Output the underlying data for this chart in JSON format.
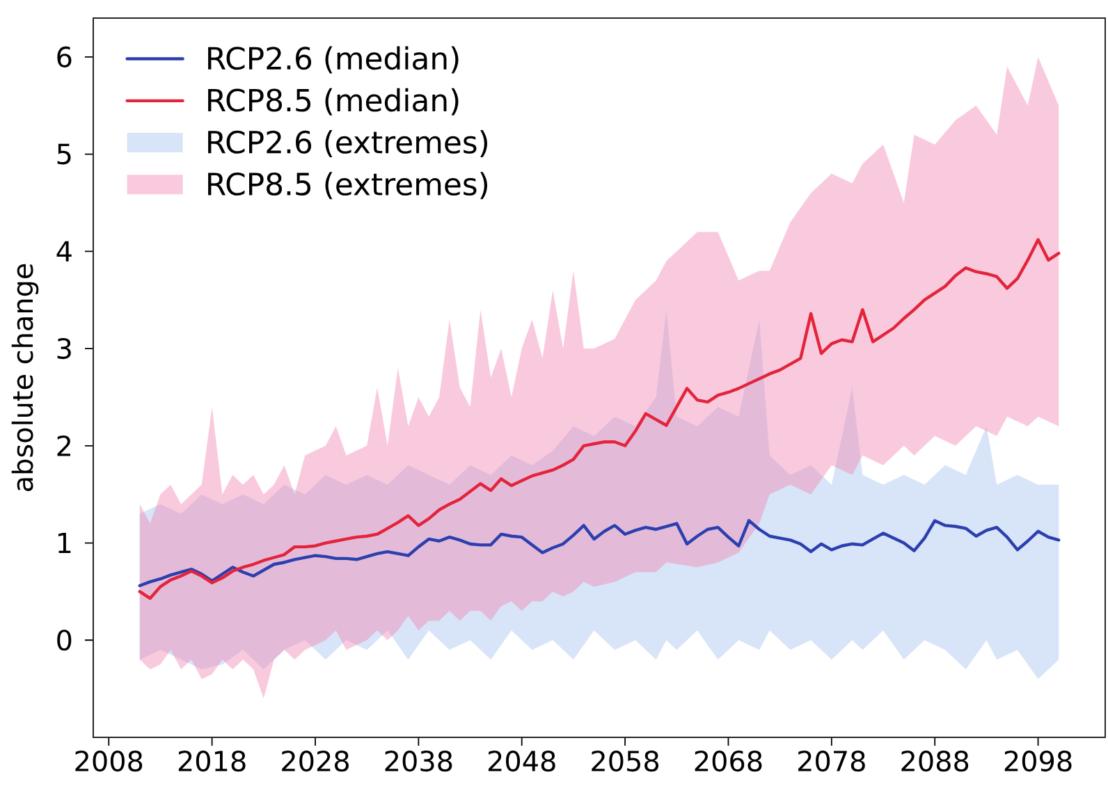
{
  "chart_data": {
    "type": "line",
    "ylabel": "absolute change",
    "x": [
      2011,
      2012,
      2013,
      2014,
      2015,
      2016,
      2017,
      2018,
      2019,
      2020,
      2021,
      2022,
      2023,
      2024,
      2025,
      2026,
      2027,
      2028,
      2029,
      2030,
      2031,
      2032,
      2033,
      2034,
      2035,
      2036,
      2037,
      2038,
      2039,
      2040,
      2041,
      2042,
      2043,
      2044,
      2045,
      2046,
      2047,
      2048,
      2049,
      2050,
      2051,
      2052,
      2053,
      2054,
      2055,
      2056,
      2057,
      2058,
      2059,
      2060,
      2061,
      2062,
      2063,
      2064,
      2065,
      2066,
      2067,
      2068,
      2069,
      2070,
      2071,
      2072,
      2073,
      2074,
      2075,
      2076,
      2077,
      2078,
      2079,
      2080,
      2081,
      2082,
      2083,
      2084,
      2085,
      2086,
      2087,
      2088,
      2089,
      2090,
      2091,
      2092,
      2093,
      2094,
      2095,
      2096,
      2097,
      2098,
      2099,
      2100
    ],
    "xlim": [
      2006.5,
      2104.5
    ],
    "ylim": [
      -1.0,
      6.4
    ],
    "xticks": [
      2008,
      2018,
      2028,
      2038,
      2048,
      2058,
      2068,
      2078,
      2088,
      2098
    ],
    "yticks": [
      0,
      1,
      2,
      3,
      4,
      5,
      6
    ],
    "legend": "top left",
    "marker": "none",
    "line_style": "solid",
    "series": [
      {
        "name": "RCP2.6 (median)",
        "color": "#2b3fae",
        "values": [
          0.56,
          0.6,
          0.63,
          0.67,
          0.7,
          0.73,
          0.68,
          0.61,
          0.68,
          0.75,
          0.7,
          0.66,
          0.72,
          0.78,
          0.8,
          0.83,
          0.85,
          0.87,
          0.86,
          0.84,
          0.84,
          0.83,
          0.86,
          0.89,
          0.91,
          0.89,
          0.87,
          0.96,
          1.04,
          1.02,
          1.06,
          1.03,
          0.99,
          0.98,
          0.98,
          1.09,
          1.07,
          1.06,
          0.98,
          0.9,
          0.95,
          0.99,
          1.08,
          1.18,
          1.04,
          1.12,
          1.18,
          1.09,
          1.13,
          1.16,
          1.14,
          1.17,
          1.2,
          0.99,
          1.07,
          1.14,
          1.16,
          1.06,
          0.97,
          1.23,
          1.14,
          1.07,
          1.05,
          1.03,
          0.99,
          0.91,
          0.99,
          0.93,
          0.97,
          0.99,
          0.98,
          1.04,
          1.1,
          1.05,
          1.0,
          0.92,
          1.05,
          1.23,
          1.18,
          1.17,
          1.15,
          1.07,
          1.13,
          1.16,
          1.06,
          0.93,
          1.02,
          1.12,
          1.06,
          1.03
        ]
      },
      {
        "name": "RCP8.5 (median)",
        "color": "#e3243b",
        "values": [
          0.5,
          0.43,
          0.55,
          0.62,
          0.66,
          0.71,
          0.66,
          0.59,
          0.64,
          0.71,
          0.75,
          0.78,
          0.82,
          0.85,
          0.88,
          0.96,
          0.96,
          0.97,
          1.0,
          1.02,
          1.04,
          1.06,
          1.07,
          1.09,
          1.15,
          1.21,
          1.28,
          1.18,
          1.25,
          1.34,
          1.4,
          1.45,
          1.53,
          1.61,
          1.54,
          1.66,
          1.59,
          1.64,
          1.69,
          1.72,
          1.75,
          1.8,
          1.86,
          2.0,
          2.02,
          2.04,
          2.04,
          2.0,
          2.15,
          2.33,
          2.27,
          2.21,
          2.4,
          2.59,
          2.47,
          2.45,
          2.52,
          2.55,
          2.59,
          2.64,
          2.69,
          2.74,
          2.78,
          2.84,
          2.9,
          3.36,
          2.95,
          3.05,
          3.09,
          3.07,
          3.4,
          3.07,
          3.14,
          3.21,
          3.31,
          3.4,
          3.5,
          3.57,
          3.64,
          3.75,
          3.83,
          3.79,
          3.77,
          3.74,
          3.62,
          3.72,
          3.91,
          4.12,
          3.91,
          3.98
        ]
      },
      {
        "name": "RCP2.6 (extremes)",
        "type": "area",
        "color": "#a9c3ef",
        "x": [
          2011,
          2013,
          2015,
          2017,
          2019,
          2021,
          2023,
          2025,
          2027,
          2029,
          2031,
          2033,
          2035,
          2037,
          2039,
          2041,
          2043,
          2045,
          2047,
          2049,
          2051,
          2053,
          2055,
          2057,
          2059,
          2061,
          2062,
          2063,
          2065,
          2067,
          2069,
          2071,
          2072,
          2074,
          2076,
          2078,
          2080,
          2081,
          2083,
          2085,
          2087,
          2089,
          2091,
          2093,
          2094,
          2096,
          2098,
          2100
        ],
        "values": [
          null,
          null,
          null,
          null,
          null,
          null,
          null,
          null,
          null,
          null,
          null,
          null,
          null,
          null,
          null,
          null,
          null,
          null,
          null,
          null,
          null,
          null,
          null,
          null,
          null,
          null,
          null,
          null,
          null,
          null,
          null,
          null,
          null,
          null,
          null,
          null,
          null,
          null,
          null,
          null,
          null,
          null,
          null,
          null,
          null,
          null,
          null,
          null
        ],
        "lower": [
          -0.2,
          -0.1,
          -0.2,
          -0.3,
          -0.25,
          -0.1,
          -0.3,
          -0.1,
          0.0,
          -0.2,
          0.0,
          -0.1,
          0.1,
          -0.2,
          0.1,
          -0.1,
          0.0,
          -0.2,
          0.1,
          -0.1,
          0.0,
          -0.2,
          0.1,
          -0.1,
          0.0,
          -0.2,
          0.0,
          -0.1,
          0.1,
          -0.2,
          0.0,
          -0.1,
          0.1,
          -0.1,
          0.0,
          -0.2,
          0.0,
          -0.1,
          0.1,
          -0.2,
          0.0,
          -0.1,
          -0.3,
          0.0,
          -0.2,
          -0.1,
          -0.4,
          -0.2
        ],
        "upper": [
          1.3,
          1.4,
          1.3,
          1.5,
          1.4,
          1.5,
          1.4,
          1.6,
          1.5,
          1.7,
          1.6,
          1.7,
          1.6,
          1.8,
          1.7,
          1.6,
          1.8,
          1.7,
          1.9,
          1.8,
          1.95,
          2.2,
          2.1,
          2.3,
          2.2,
          2.5,
          3.4,
          2.3,
          2.2,
          2.4,
          2.3,
          3.3,
          1.9,
          1.7,
          1.8,
          1.6,
          2.6,
          1.7,
          1.6,
          1.7,
          1.6,
          1.8,
          1.7,
          2.2,
          1.6,
          1.7,
          1.6,
          1.6
        ]
      },
      {
        "name": "RCP8.5 (extremes)",
        "type": "area",
        "color": "#f28ab4",
        "x": [
          2011,
          2012,
          2013,
          2014,
          2015,
          2016,
          2017,
          2018,
          2019,
          2020,
          2021,
          2022,
          2023,
          2024,
          2025,
          2026,
          2027,
          2029,
          2030,
          2031,
          2033,
          2034,
          2035,
          2036,
          2037,
          2038,
          2039,
          2040,
          2041,
          2042,
          2043,
          2044,
          2045,
          2046,
          2047,
          2048,
          2049,
          2050,
          2051,
          2052,
          2053,
          2054,
          2055,
          2057,
          2059,
          2061,
          2062,
          2065,
          2067,
          2069,
          2071,
          2072,
          2074,
          2076,
          2078,
          2080,
          2081,
          2083,
          2085,
          2086,
          2088,
          2090,
          2092,
          2094,
          2095,
          2097,
          2098,
          2100
        ],
        "values": [
          null,
          null,
          null,
          null,
          null,
          null,
          null,
          null,
          null,
          null,
          null,
          null,
          null,
          null,
          null,
          null,
          null,
          null,
          null,
          null,
          null,
          null,
          null,
          null,
          null,
          null,
          null,
          null,
          null,
          null,
          null,
          null,
          null,
          null,
          null,
          null,
          null,
          null,
          null,
          null,
          null,
          null,
          null,
          null,
          null,
          null,
          null,
          null,
          null,
          null,
          null,
          null,
          null,
          null,
          null,
          null,
          null,
          null,
          null,
          null,
          null,
          null,
          null,
          null,
          null,
          null,
          null,
          null
        ],
        "lower": [
          -0.2,
          -0.3,
          -0.25,
          -0.1,
          -0.3,
          -0.2,
          -0.4,
          -0.35,
          -0.2,
          -0.3,
          -0.2,
          -0.3,
          -0.6,
          -0.2,
          -0.1,
          -0.2,
          -0.1,
          0.0,
          0.1,
          -0.1,
          0.0,
          0.1,
          0.0,
          0.1,
          0.25,
          0.1,
          0.2,
          0.2,
          0.3,
          0.2,
          0.3,
          0.3,
          0.2,
          0.35,
          0.4,
          0.3,
          0.4,
          0.4,
          0.5,
          0.45,
          0.5,
          0.6,
          0.55,
          0.6,
          0.7,
          0.7,
          0.8,
          0.75,
          0.8,
          0.9,
          1.2,
          1.5,
          1.6,
          1.5,
          1.8,
          1.7,
          1.9,
          1.8,
          2.0,
          1.9,
          2.1,
          2.0,
          2.2,
          2.1,
          2.3,
          2.2,
          2.3,
          2.2
        ],
        "upper": [
          1.4,
          1.2,
          1.5,
          1.6,
          1.4,
          1.5,
          1.6,
          2.4,
          1.5,
          1.7,
          1.6,
          1.7,
          1.5,
          1.6,
          1.8,
          1.5,
          1.9,
          2.0,
          2.2,
          1.9,
          2.0,
          2.6,
          2.0,
          2.8,
          2.2,
          2.5,
          2.3,
          2.5,
          3.3,
          2.6,
          2.4,
          3.4,
          2.7,
          3.0,
          2.5,
          3.0,
          3.3,
          2.9,
          3.6,
          3.0,
          3.8,
          3.0,
          3.0,
          3.1,
          3.5,
          3.7,
          3.9,
          4.2,
          4.2,
          3.7,
          3.8,
          3.8,
          4.3,
          4.6,
          4.8,
          4.7,
          4.9,
          5.1,
          4.5,
          5.2,
          5.1,
          5.35,
          5.5,
          5.2,
          5.9,
          5.5,
          6.0,
          5.5
        ]
      }
    ]
  }
}
